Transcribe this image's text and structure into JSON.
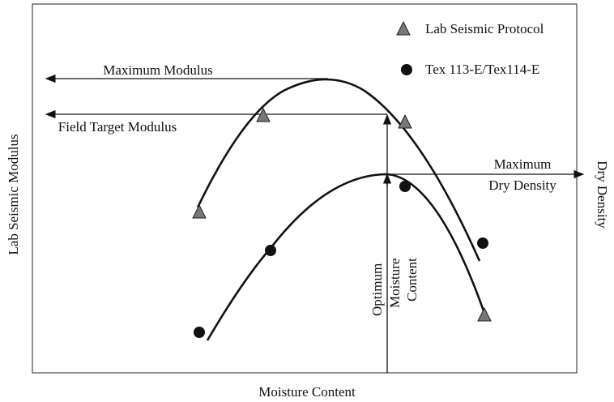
{
  "axes": {
    "y_left": "Lab Seismic Modulus",
    "y_right": "Dry Density",
    "x": "Moisture Content"
  },
  "legend": [
    {
      "label": "Lab Seismic Protocol"
    },
    {
      "label": "Tex 113-E/Tex114-E"
    }
  ],
  "annotations": {
    "max_modulus": "Maximum Modulus",
    "field_target": "Field Target Modulus",
    "max_density": [
      "Maximum",
      "Dry Density"
    ],
    "optimum": [
      "Optimum",
      "Moisture",
      "Content"
    ]
  }
}
